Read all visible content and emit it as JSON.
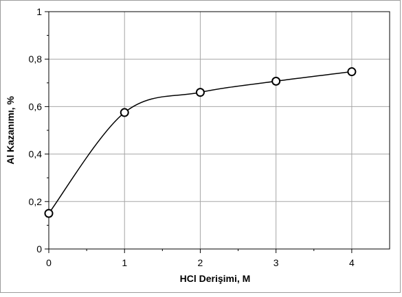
{
  "chart_data": {
    "type": "line",
    "title": "",
    "xlabel": "HCl  Derişimi, M",
    "ylabel": "Al  Kazanımı, %",
    "x": [
      0,
      1,
      2,
      3,
      4
    ],
    "series": [
      {
        "values": [
          0.15,
          0.575,
          0.66,
          0.707,
          0.747
        ],
        "smooth": true,
        "marker": "open-circle",
        "color": "#000000"
      }
    ],
    "xlim": [
      0,
      4.5
    ],
    "ylim": [
      0,
      1
    ],
    "x_ticks": [
      0,
      1,
      2,
      3,
      4
    ],
    "x_tick_labels": [
      "0",
      "1",
      "2",
      "3",
      "4"
    ],
    "y_ticks": [
      0,
      0.2,
      0.4,
      0.6,
      0.8,
      1
    ],
    "y_tick_labels": [
      "0",
      "0,2",
      "0,4",
      "0,6",
      "0,8",
      "1"
    ],
    "grid": true,
    "legend": "none"
  }
}
